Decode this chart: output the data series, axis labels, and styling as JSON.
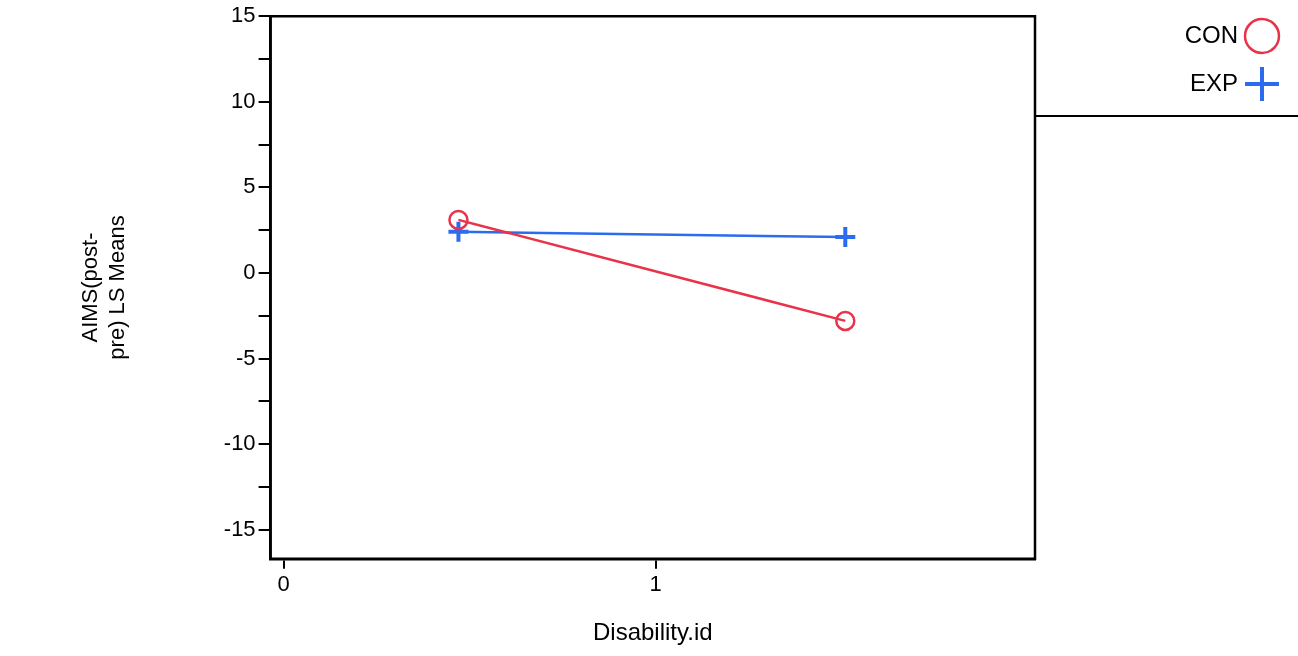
{
  "chart_data": {
    "type": "line",
    "xlabel": "Disability.id",
    "ylabel": "AIMS(post- pre) LS Means",
    "xlim": [
      -0.035,
      2.02
    ],
    "xticks": [
      0,
      1
    ],
    "ylim": [
      -16.7,
      15
    ],
    "yticks": [
      {
        "value": -15,
        "label": "-15"
      },
      {
        "value": -12.5,
        "label": null
      },
      {
        "value": -10,
        "label": "-10"
      },
      {
        "value": -7.5,
        "label": null
      },
      -5,
      {
        "value": -2.5,
        "label": null
      },
      0,
      {
        "value": 2.5,
        "label": null
      },
      5,
      {
        "value": 7.5,
        "label": null
      },
      10,
      {
        "value": 12.5,
        "label": null
      },
      15
    ],
    "x": [
      0.47,
      1.51
    ],
    "grid": false,
    "legend": "top right",
    "line_style": "solid",
    "series": [
      {
        "name": "CON",
        "color": "#e8334a",
        "marker": "circle",
        "values": [
          3.1,
          -2.8
        ]
      },
      {
        "name": "EXP",
        "color": "#2b6bef",
        "marker": "cross",
        "values": [
          2.4,
          2.1
        ]
      }
    ]
  }
}
